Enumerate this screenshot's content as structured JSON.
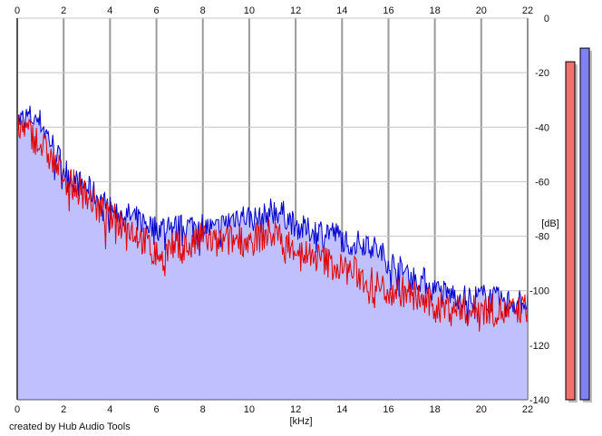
{
  "chart_data": {
    "type": "area",
    "title": "",
    "xlabel": "[kHz]",
    "ylabel": "[dB]",
    "xlim": [
      0,
      22
    ],
    "ylim": [
      -140,
      0
    ],
    "x_ticks": [
      "0",
      "2",
      "4",
      "6",
      "8",
      "10",
      "12",
      "14",
      "16",
      "18",
      "20",
      "22"
    ],
    "y_ticks": [
      "0",
      "-20",
      "-40",
      "-60",
      "-80",
      "-100",
      "-120",
      "-140"
    ],
    "grid": true,
    "series": [
      {
        "color": "#0000cc",
        "fill": "#c0c0ff",
        "x_khz": [
          0,
          0.5,
          1,
          1.5,
          2,
          2.5,
          3,
          3.5,
          4,
          4.5,
          5,
          5.5,
          6,
          6.5,
          7,
          7.5,
          8,
          8.5,
          9,
          9.5,
          10,
          10.5,
          11,
          11.5,
          12,
          12.5,
          13,
          13.5,
          14,
          14.5,
          15,
          15.5,
          16,
          16.5,
          17,
          17.5,
          18,
          18.5,
          19,
          19.5,
          20,
          20.5,
          21,
          21.5,
          22
        ],
        "values_db": [
          -38,
          -36,
          -38,
          -46,
          -55,
          -60,
          -62,
          -66,
          -70,
          -72,
          -73,
          -75,
          -77,
          -76,
          -77,
          -76,
          -76,
          -78,
          -75,
          -72,
          -73,
          -74,
          -70,
          -72,
          -76,
          -78,
          -78,
          -78,
          -81,
          -83,
          -82,
          -85,
          -89,
          -92,
          -95,
          -96,
          -100,
          -101,
          -102,
          -103,
          -102,
          -103,
          -104,
          -104,
          -104
        ]
      },
      {
        "color": "#e00000",
        "x_khz": [
          0,
          0.5,
          1,
          1.5,
          2,
          2.5,
          3,
          3.5,
          4,
          4.5,
          5,
          5.5,
          6,
          6.5,
          7,
          7.5,
          8,
          8.5,
          9,
          9.5,
          10,
          10.5,
          11,
          11.5,
          12,
          12.5,
          13,
          13.5,
          14,
          14.5,
          15,
          15.5,
          16,
          16.5,
          17,
          17.5,
          18,
          18.5,
          19,
          19.5,
          20,
          20.5,
          21,
          21.5,
          22
        ],
        "values_db": [
          -40,
          -42,
          -46,
          -52,
          -58,
          -62,
          -65,
          -70,
          -73,
          -75,
          -78,
          -82,
          -87,
          -85,
          -83,
          -84,
          -80,
          -83,
          -82,
          -81,
          -82,
          -80,
          -79,
          -82,
          -84,
          -87,
          -88,
          -90,
          -92,
          -93,
          -96,
          -98,
          -100,
          -100,
          -101,
          -104,
          -106,
          -106,
          -106,
          -108,
          -106,
          -107,
          -108,
          -108,
          -106
        ]
      }
    ],
    "level_meters": [
      {
        "color": "#f07070",
        "level_db": -16
      },
      {
        "color": "#8080f0",
        "level_db": -11
      }
    ]
  },
  "credit": "created by Hub Audio Tools"
}
